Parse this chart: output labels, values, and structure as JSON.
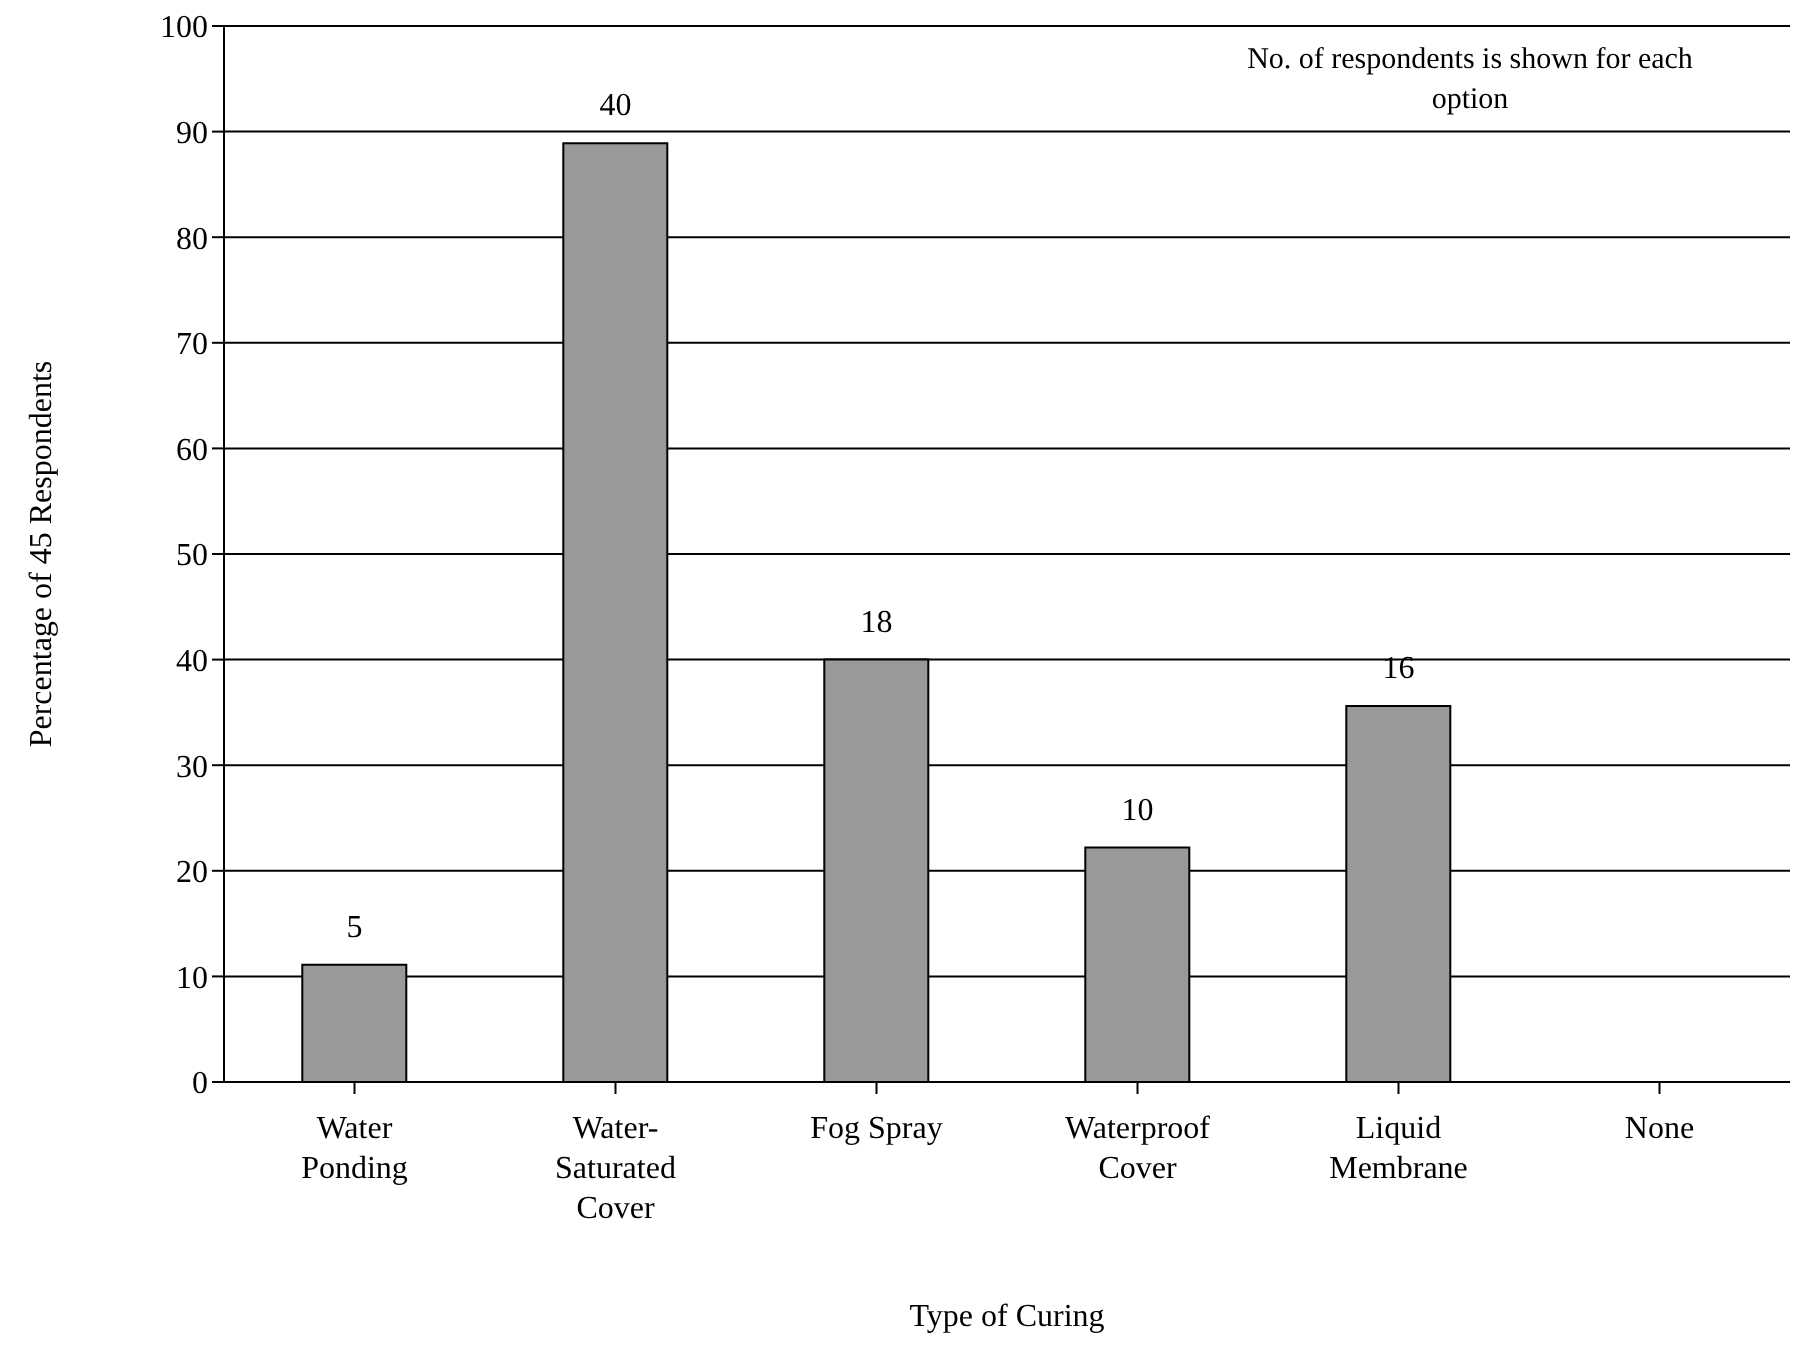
{
  "chart_data": {
    "type": "bar",
    "xlabel": "Type of Curing",
    "ylabel": "Percentage of 45 Respondents",
    "categories": [
      "Water Ponding",
      "Water-Saturated Cover",
      "Fog Spray",
      "Waterproof Cover",
      "Liquid Membrane",
      "None"
    ],
    "values": [
      11.1,
      88.9,
      40,
      22.2,
      35.6,
      0
    ],
    "color": "#999999",
    "ylim": [
      0,
      100
    ],
    "yticks": [
      0,
      10,
      20,
      30,
      40,
      50,
      60,
      70,
      80,
      90,
      100
    ],
    "grid": "y",
    "annotations": [
      "No. of respondents is shown for each option",
      {
        "text": "5",
        "x": "Water Ponding",
        "y": 11.1
      },
      {
        "text": "40",
        "x": "Water-Saturated Cover",
        "y": 88.9
      },
      {
        "text": "18",
        "x": "Fog Spray",
        "y": 40
      },
      {
        "text": "10",
        "x": "Waterproof Cover",
        "y": 22.2
      },
      {
        "text": "16",
        "x": "Liquid Membrane",
        "y": 35.6
      }
    ]
  }
}
